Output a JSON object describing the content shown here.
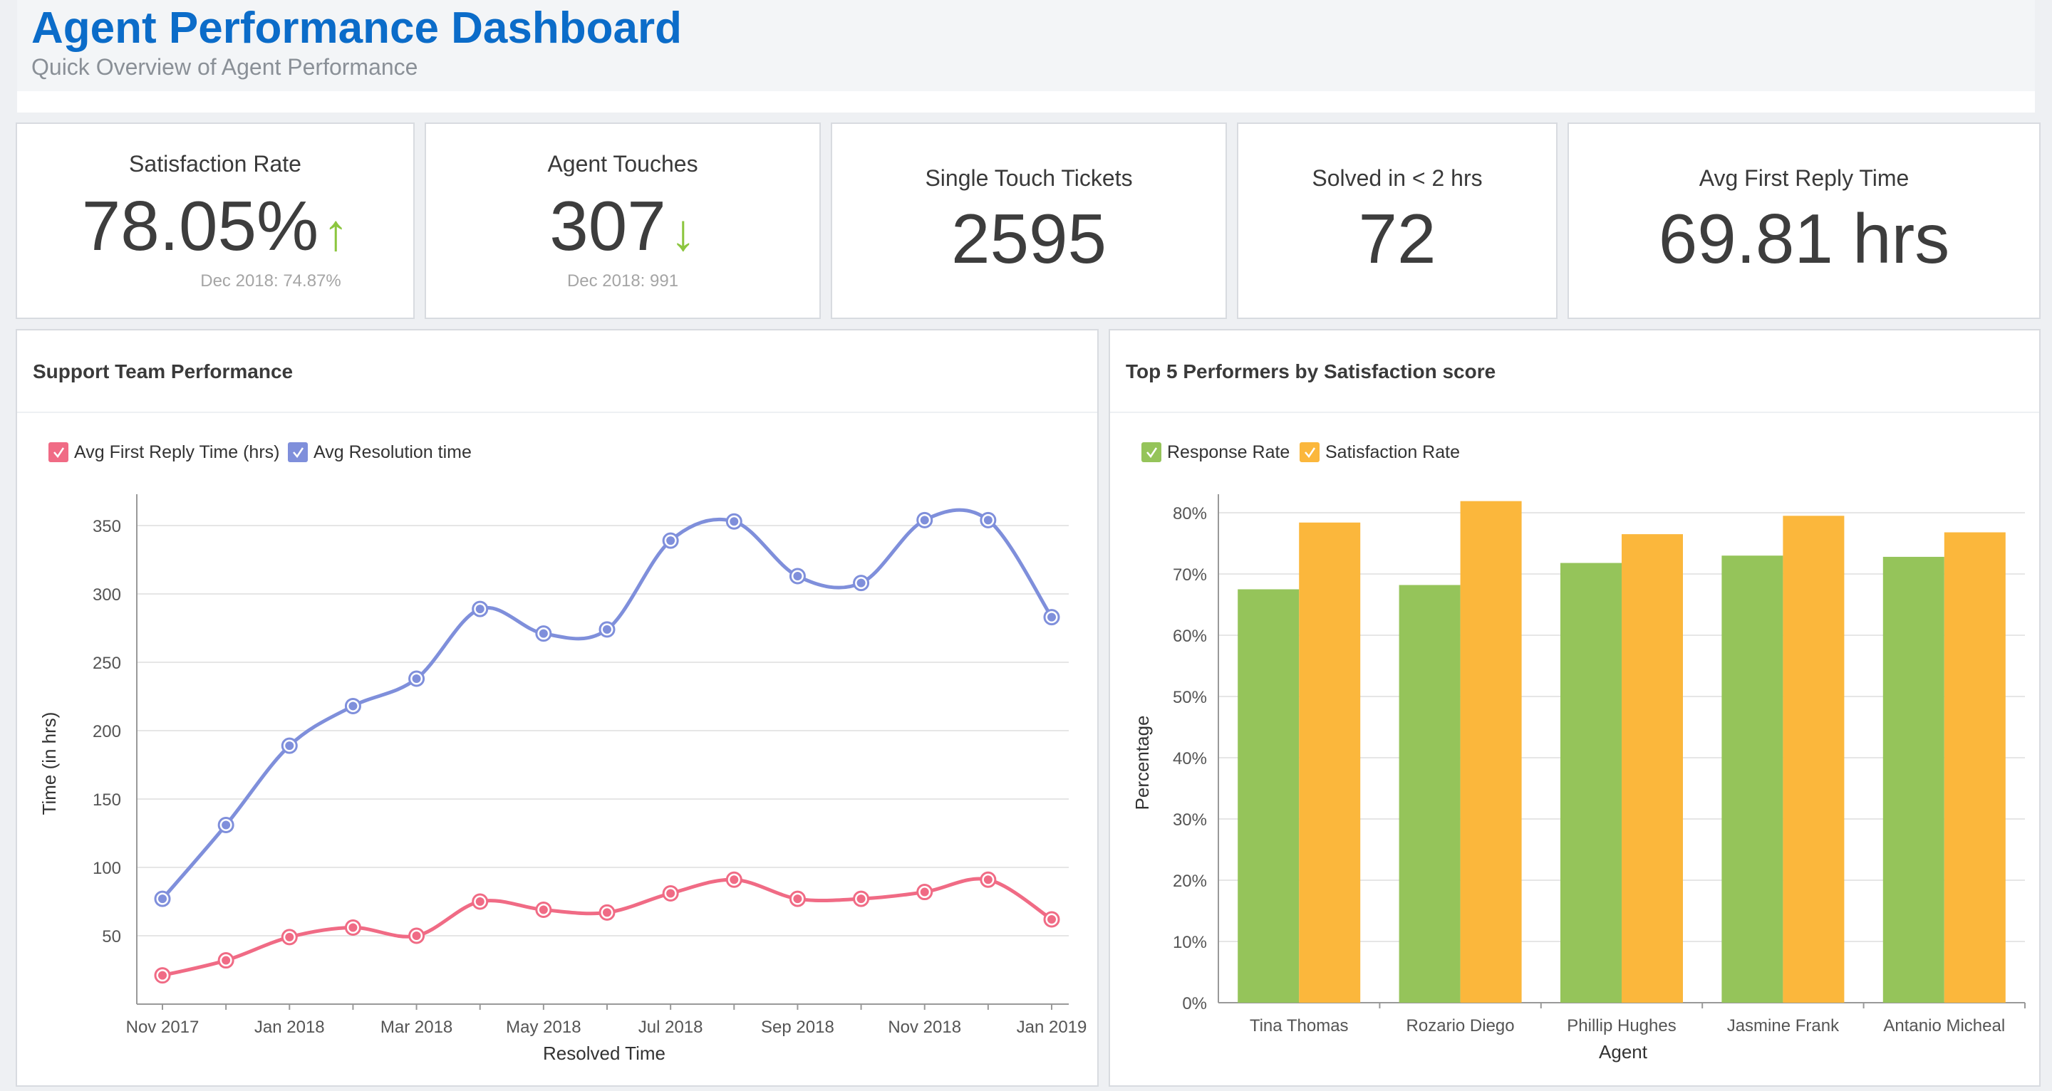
{
  "header": {
    "title": "Agent Performance Dashboard",
    "subtitle": "Quick Overview of Agent Performance"
  },
  "kpis": {
    "satisfaction": {
      "label": "Satisfaction Rate",
      "value": "78.05%",
      "arrow": "↑",
      "sub": "Dec 2018: 74.87%"
    },
    "touches": {
      "label": "Agent Touches",
      "value": "307",
      "arrow": "↓",
      "sub": "Dec 2018: 991"
    },
    "single": {
      "label": "Single Touch Tickets",
      "value": "2595"
    },
    "solved": {
      "label": "Solved in < 2 hrs",
      "value": "72"
    },
    "reply": {
      "label": "Avg First Reply Time",
      "value": "69.81 hrs"
    }
  },
  "colors": {
    "accent": "#0b6cc9",
    "arrow": "#8cc63f",
    "first_reply": "#f06b85",
    "resolution": "#7f8fdb",
    "response_rate": "#95c45a",
    "satisfaction_rate": "#fbb73c"
  },
  "chart_data": [
    {
      "type": "line",
      "title": "Support Team Performance",
      "xlabel": "Resolved Time",
      "ylabel": "Time (in hrs)",
      "x": [
        "Nov 2017",
        "Dec 2017",
        "Jan 2018",
        "Feb 2018",
        "Mar 2018",
        "Apr 2018",
        "May 2018",
        "Jun 2018",
        "Jul 2018",
        "Aug 2018",
        "Sep 2018",
        "Oct 2018",
        "Nov 2018",
        "Dec 2018",
        "Jan 2019"
      ],
      "x_tick_labels": [
        "Nov 2017",
        "",
        "Jan 2018",
        "",
        "Mar 2018",
        "",
        "May 2018",
        "",
        "Jul 2018",
        "",
        "Sep 2018",
        "",
        "Nov 2018",
        "",
        "Jan 2019"
      ],
      "yticks": [
        50,
        100,
        150,
        200,
        250,
        300,
        350
      ],
      "ylim": [
        0,
        370
      ],
      "legend_position": "top-left",
      "series": [
        {
          "name": "Avg First Reply Time (hrs)",
          "values": [
            21,
            32,
            49,
            56,
            50,
            75,
            69,
            67,
            81,
            91,
            77,
            77,
            82,
            91,
            62
          ]
        },
        {
          "name": "Avg Resolution time",
          "values": [
            77,
            131,
            189,
            218,
            238,
            289,
            271,
            274,
            339,
            353,
            313,
            308,
            354,
            354,
            283
          ]
        }
      ]
    },
    {
      "type": "bar",
      "title": "Top 5 Performers by Satisfaction score",
      "xlabel": "Agent",
      "ylabel": "Percentage",
      "categories": [
        "Tina Thomas",
        "Rozario Diego",
        "Phillip Hughes",
        "Jasmine Frank",
        "Antanio Micheal"
      ],
      "yticks": [
        "0%",
        "10%",
        "20%",
        "30%",
        "40%",
        "50%",
        "60%",
        "70%",
        "80%"
      ],
      "ylim": [
        0,
        83
      ],
      "legend_position": "top-left",
      "series": [
        {
          "name": "Response Rate",
          "values": [
            67.5,
            68.2,
            71.8,
            73,
            72.8
          ]
        },
        {
          "name": "Satisfaction Rate",
          "values": [
            78.4,
            81.9,
            76.5,
            79.5,
            76.8
          ]
        }
      ]
    }
  ]
}
